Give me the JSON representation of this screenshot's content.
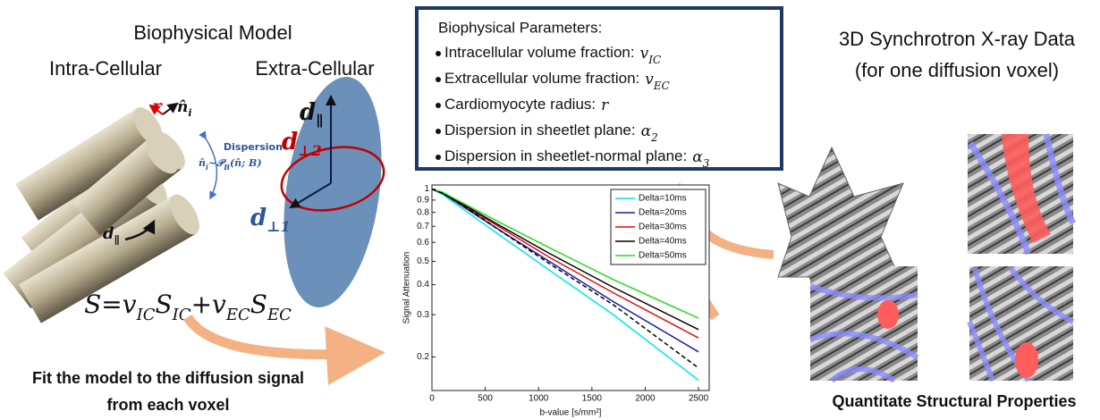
{
  "model": {
    "title": "Biophysical Model",
    "intra": "Intra-Cellular",
    "extra": "Extra-Cellular",
    "labels": {
      "r": "r",
      "n_i": {
        "base": "n̂",
        "sub": "i"
      },
      "dispersion": "Dispersion",
      "dispersion_formula": {
        "base": "n̂",
        "sub": "i",
        "rel": "~𝒫",
        "rel_sub": "B",
        "tail": "(n̂; B)"
      },
      "d_par_cell": {
        "base": "d",
        "sub": "∥"
      },
      "d_par": {
        "base": "d",
        "sub": "∥"
      },
      "d_perp2": {
        "base": "d",
        "sub": "⊥2"
      },
      "d_perp1": {
        "base": "d",
        "sub": "⊥1"
      }
    },
    "equation": [
      {
        "base": "S"
      },
      {
        "base": "="
      },
      {
        "base": "v",
        "sub": "IC"
      },
      {
        "base": "S",
        "sub": "IC"
      },
      {
        "base": "+"
      },
      {
        "base": "v",
        "sub": "EC"
      },
      {
        "base": "S",
        "sub": "EC"
      }
    ],
    "fit_caption": [
      "Fit the model to  the diffusion signal",
      "from each voxel"
    ]
  },
  "parameters": {
    "title": "Biophysical Parameters:",
    "items": [
      {
        "text": "Intracellular volume fraction:",
        "symbol": "v",
        "sub": "IC"
      },
      {
        "text": "Extracellular volume fraction:",
        "symbol": "v",
        "sub": "EC"
      },
      {
        "text": "Cardiomyocyte radius:",
        "symbol": "r"
      },
      {
        "text": "Dispersion in sheetlet plane:",
        "symbol": "α",
        "sub": "2"
      },
      {
        "text": "Dispersion in sheetlet-normal plane:",
        "symbol": "α",
        "sub": "3"
      }
    ]
  },
  "xray": {
    "title": "3D Synchrotron X-ray Data",
    "subtitle": "(for one diffusion voxel)",
    "caption": "Quantitate Structural Properties"
  },
  "chart": {
    "type": "line",
    "x_label": "b-value [s/mm²]",
    "y_label": "Signal Attenuation",
    "log_y": true,
    "x": [
      0,
      100,
      300,
      600,
      1100,
      1700,
      2500
    ],
    "series": [
      {
        "name": "Delta=10ms",
        "color": "#00e5ee",
        "values": [
          1,
          0.95,
          0.82,
          0.66,
          0.46,
          0.3,
          0.16
        ]
      },
      {
        "name": "Delta=20ms",
        "color": "#1a1aa8",
        "values": [
          1,
          0.96,
          0.84,
          0.69,
          0.5,
          0.34,
          0.21
        ]
      },
      {
        "name": "Delta=30ms",
        "color": "#e01010",
        "values": [
          1,
          0.96,
          0.85,
          0.71,
          0.52,
          0.37,
          0.24
        ]
      },
      {
        "name": "Delta=40ms",
        "color": "#000000",
        "values": [
          1,
          0.96,
          0.86,
          0.72,
          0.54,
          0.39,
          0.26
        ]
      },
      {
        "name": "Delta=50ms",
        "color": "#22dd22",
        "values": [
          1,
          0.97,
          0.87,
          0.74,
          0.57,
          0.42,
          0.29
        ]
      }
    ],
    "fit": {
      "color": "#000000",
      "values": [
        1,
        0.96,
        0.85,
        0.69,
        0.49,
        0.33,
        0.18
      ]
    },
    "xlim": [
      0,
      2600
    ],
    "xticks": [
      0,
      500,
      1000,
      1500,
      2000,
      2500
    ],
    "ylim": [
      0.145,
      1.04
    ],
    "yticks": [
      0.2,
      0.3,
      0.4,
      0.5,
      0.6,
      0.7,
      0.8,
      0.9,
      1
    ],
    "legend": "upper right"
  }
}
